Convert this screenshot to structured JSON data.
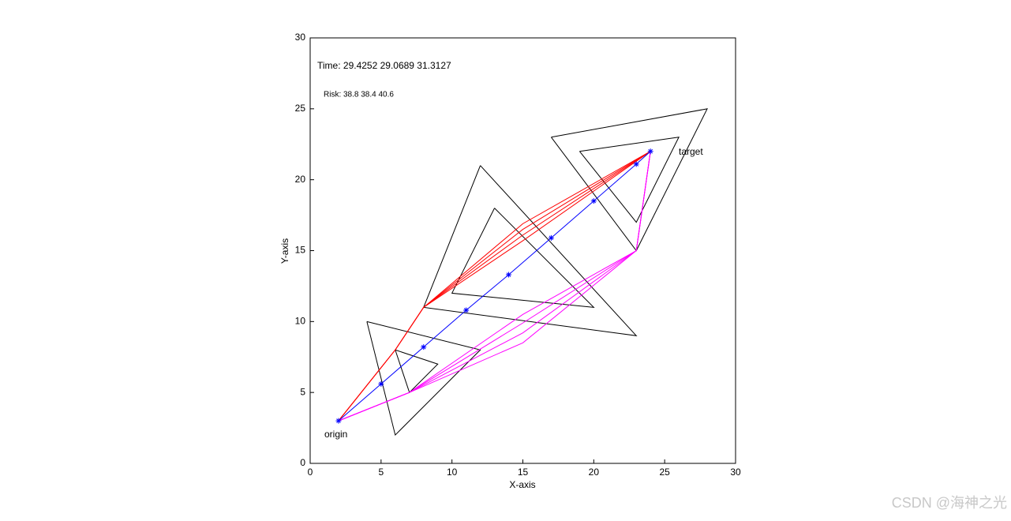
{
  "chart_data": {
    "type": "line",
    "xlabel": "X-axis",
    "ylabel": "Y-axis",
    "xlim": [
      0,
      30
    ],
    "ylim": [
      0,
      30
    ],
    "xticks": [
      0,
      5,
      10,
      15,
      20,
      25,
      30
    ],
    "yticks": [
      0,
      5,
      10,
      15,
      20,
      25,
      30
    ],
    "annotations": [
      "Time:  29.4252 29.0689 31.3127",
      "Risk:   38.8  38.4  40.6",
      "target",
      "origin"
    ],
    "watermark": "CSDN @海神之光",
    "series": [
      {
        "color": "#000000",
        "x": [
          12,
          23,
          8,
          12
        ],
        "values": [
          21,
          9,
          11,
          21
        ]
      },
      {
        "color": "#000000",
        "x": [
          13,
          20,
          10,
          13
        ],
        "values": [
          18,
          11,
          12,
          18
        ]
      },
      {
        "color": "#000000",
        "x": [
          17,
          28,
          23,
          17
        ],
        "values": [
          23,
          25,
          15,
          23
        ]
      },
      {
        "color": "#000000",
        "x": [
          19,
          26,
          23,
          19
        ],
        "values": [
          22,
          23,
          17,
          22
        ]
      },
      {
        "color": "#000000",
        "x": [
          4,
          12,
          6,
          4
        ],
        "values": [
          10,
          8,
          2,
          10
        ]
      },
      {
        "color": "#000000",
        "x": [
          6,
          9,
          7,
          6
        ],
        "values": [
          8,
          7,
          5,
          8
        ]
      },
      {
        "color": "#ff0000",
        "x": [
          2,
          6,
          8,
          15,
          24
        ],
        "values": [
          3,
          8,
          11,
          16.9,
          22
        ]
      },
      {
        "color": "#ff0000",
        "x": [
          2,
          6,
          8,
          15,
          24
        ],
        "values": [
          3,
          8,
          11,
          16.5,
          22
        ]
      },
      {
        "color": "#ff0000",
        "x": [
          2,
          6,
          8,
          15,
          24
        ],
        "values": [
          3,
          8,
          11,
          16.1,
          22
        ]
      },
      {
        "color": "#ff0000",
        "x": [
          2,
          6,
          8,
          15,
          24
        ],
        "values": [
          3,
          8,
          11,
          15.7,
          22
        ]
      },
      {
        "color": "#ff00ff",
        "x": [
          2,
          7,
          15,
          23,
          24
        ],
        "values": [
          3,
          5,
          10.5,
          15,
          22
        ]
      },
      {
        "color": "#ff00ff",
        "x": [
          2,
          7,
          15,
          23,
          24
        ],
        "values": [
          3,
          5,
          9.9,
          15,
          22
        ]
      },
      {
        "color": "#ff00ff",
        "x": [
          2,
          7,
          15,
          23,
          24
        ],
        "values": [
          3,
          5,
          9.2,
          15,
          22
        ]
      },
      {
        "color": "#ff00ff",
        "x": [
          2,
          7,
          15,
          23,
          24
        ],
        "values": [
          3,
          5,
          8.5,
          15,
          22
        ]
      },
      {
        "color": "#0000ff",
        "marker": "*",
        "x": [
          2,
          5,
          8,
          11,
          14,
          17,
          20,
          23,
          24
        ],
        "values": [
          3,
          5.6,
          8.2,
          10.8,
          13.3,
          15.9,
          18.5,
          21.1,
          22
        ]
      }
    ]
  }
}
